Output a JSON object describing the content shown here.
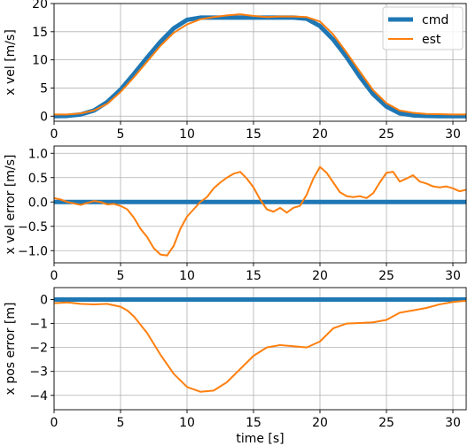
{
  "colors": {
    "cmd": "#1f77b4",
    "est": "#ff7f0e",
    "grid": "#b0b0b0"
  },
  "chart_data": [
    {
      "type": "line",
      "title": "",
      "xlabel": "",
      "ylabel": "x vel [m/s]",
      "xlim": [
        0,
        31
      ],
      "ylim": [
        -0.9,
        20
      ],
      "xticks": [
        0,
        5,
        10,
        15,
        20,
        25,
        30
      ],
      "yticks": [
        0,
        5,
        10,
        15,
        20
      ],
      "grid": true,
      "legend": "top-right",
      "series": [
        {
          "name": "cmd",
          "x": [
            0,
            1,
            2,
            3,
            4,
            5,
            6,
            7,
            8,
            9,
            10,
            11,
            12,
            13,
            14,
            15,
            16,
            17,
            18,
            19,
            20,
            21,
            22,
            23,
            24,
            25,
            26,
            27,
            28,
            29,
            30,
            31
          ],
          "y": [
            0.0,
            0.05,
            0.3,
            1.0,
            2.5,
            4.7,
            7.5,
            10.4,
            13.2,
            15.6,
            17.1,
            17.5,
            17.5,
            17.5,
            17.5,
            17.5,
            17.5,
            17.5,
            17.5,
            17.3,
            16.0,
            13.6,
            10.5,
            7.0,
            3.9,
            1.7,
            0.5,
            0.15,
            0.05,
            0.0,
            0.0,
            0.0
          ]
        },
        {
          "name": "est",
          "x": [
            0,
            1,
            2,
            3,
            4,
            5,
            6,
            7,
            8,
            9,
            10,
            11,
            12,
            13,
            14,
            15,
            16,
            17,
            18,
            19,
            20,
            21,
            22,
            23,
            24,
            25,
            26,
            27,
            28,
            29,
            30,
            31
          ],
          "y": [
            0.3,
            0.3,
            0.5,
            1.0,
            2.2,
            4.3,
            6.9,
            9.7,
            12.5,
            14.8,
            16.3,
            17.2,
            17.6,
            17.9,
            18.1,
            17.8,
            17.6,
            17.7,
            17.7,
            17.6,
            16.8,
            14.5,
            11.3,
            7.9,
            4.6,
            2.3,
            1.0,
            0.6,
            0.4,
            0.35,
            0.3,
            0.3
          ]
        }
      ]
    },
    {
      "type": "line",
      "title": "",
      "xlabel": "",
      "ylabel": "x vel error [m/s]",
      "xlim": [
        0,
        31
      ],
      "ylim": [
        -1.25,
        1.15
      ],
      "xticks": [
        0,
        5,
        10,
        15,
        20,
        25,
        30
      ],
      "yticks": [
        -1.0,
        -0.5,
        0.0,
        0.5,
        1.0
      ],
      "ytick_labels": [
        "−1.0",
        "−0.5",
        "0.0",
        "0.5",
        "1.0"
      ],
      "grid": true,
      "series": [
        {
          "name": "cmd",
          "x": [
            0,
            31
          ],
          "y": [
            0,
            0
          ]
        },
        {
          "name": "est",
          "x": [
            0,
            0.5,
            1.0,
            1.5,
            2.0,
            2.5,
            3.0,
            3.5,
            4.0,
            4.5,
            5.0,
            5.5,
            6.0,
            6.5,
            7.0,
            7.5,
            8.0,
            8.5,
            9.0,
            9.5,
            10.0,
            10.5,
            11.0,
            11.5,
            12.0,
            12.5,
            13.0,
            13.5,
            14.0,
            14.5,
            15.0,
            15.5,
            16.0,
            16.5,
            17.0,
            17.5,
            18.0,
            18.5,
            19.0,
            19.5,
            20.0,
            20.5,
            21.0,
            21.5,
            22.0,
            22.5,
            23.0,
            23.5,
            24.0,
            24.5,
            25.0,
            25.5,
            26.0,
            26.5,
            27.0,
            27.5,
            28.0,
            28.5,
            29.0,
            29.5,
            30.0,
            30.5,
            31.0
          ],
          "y": [
            0.08,
            0.05,
            0.0,
            -0.03,
            -0.06,
            -0.02,
            0.02,
            0.0,
            -0.05,
            -0.04,
            -0.08,
            -0.15,
            -0.32,
            -0.55,
            -0.72,
            -0.95,
            -1.08,
            -1.1,
            -0.9,
            -0.55,
            -0.3,
            -0.15,
            0.0,
            0.1,
            0.28,
            0.4,
            0.5,
            0.58,
            0.62,
            0.48,
            0.3,
            0.05,
            -0.15,
            -0.2,
            -0.12,
            -0.22,
            -0.12,
            -0.08,
            0.15,
            0.48,
            0.72,
            0.6,
            0.4,
            0.2,
            0.12,
            0.1,
            0.12,
            0.08,
            0.18,
            0.4,
            0.6,
            0.62,
            0.42,
            0.48,
            0.55,
            0.42,
            0.38,
            0.32,
            0.3,
            0.32,
            0.28,
            0.22,
            0.25
          ]
        }
      ]
    },
    {
      "type": "line",
      "title": "",
      "xlabel": "time [s]",
      "ylabel": "x pos error [m]",
      "xlim": [
        0,
        31
      ],
      "ylim": [
        -4.6,
        0.5
      ],
      "xticks": [
        0,
        5,
        10,
        15,
        20,
        25,
        30
      ],
      "yticks": [
        -4,
        -3,
        -2,
        -1,
        0
      ],
      "ytick_labels": [
        "−4",
        "−3",
        "−2",
        "−1",
        "0"
      ],
      "grid": true,
      "series": [
        {
          "name": "cmd",
          "x": [
            0,
            31
          ],
          "y": [
            0,
            0
          ]
        },
        {
          "name": "est",
          "x": [
            0,
            1,
            2,
            3,
            4,
            5,
            5.5,
            6,
            7,
            8,
            9,
            10,
            11,
            12,
            13,
            14,
            15,
            16,
            17,
            18,
            19,
            20,
            21,
            22,
            23,
            24,
            25,
            26,
            27,
            28,
            29,
            30,
            31
          ],
          "y": [
            -0.15,
            -0.12,
            -0.18,
            -0.2,
            -0.18,
            -0.3,
            -0.45,
            -0.7,
            -1.4,
            -2.3,
            -3.1,
            -3.65,
            -3.85,
            -3.8,
            -3.45,
            -2.9,
            -2.35,
            -2.0,
            -1.9,
            -1.95,
            -2.0,
            -1.75,
            -1.2,
            -1.0,
            -0.98,
            -0.95,
            -0.85,
            -0.55,
            -0.45,
            -0.35,
            -0.2,
            -0.1,
            -0.05
          ]
        }
      ]
    }
  ]
}
